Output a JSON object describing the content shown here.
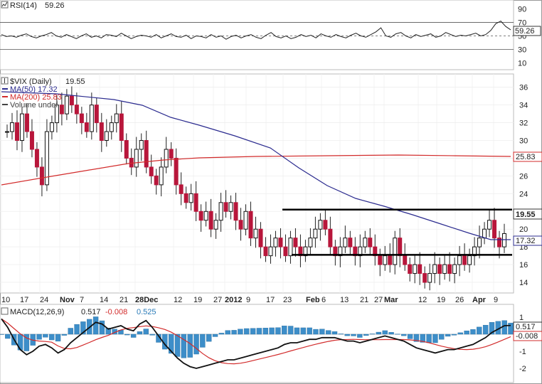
{
  "rsi": {
    "label": "RSI(14)",
    "value": "59.26",
    "ticks": [
      "90",
      "70",
      "50",
      "30",
      "10"
    ],
    "values": [
      52,
      49,
      50,
      48,
      51,
      53,
      49,
      47,
      50,
      52,
      55,
      50,
      48,
      52,
      49,
      46,
      50,
      53,
      48,
      50,
      47,
      52,
      51,
      49,
      54,
      50,
      46,
      49,
      51,
      50,
      48,
      52,
      47,
      50,
      53,
      49,
      48,
      51,
      46,
      50,
      49,
      47,
      52,
      48,
      50,
      45,
      49,
      51,
      47,
      50,
      52,
      48,
      46,
      51,
      55,
      49,
      47,
      50,
      46,
      48,
      52,
      49,
      51,
      47,
      53,
      50,
      48,
      52,
      49,
      47,
      51,
      54,
      50,
      48,
      52,
      56,
      62,
      50,
      48,
      53,
      55,
      50,
      47,
      52,
      49,
      51,
      53,
      48,
      50,
      55,
      52,
      49,
      51,
      50,
      52,
      54,
      50,
      52,
      58,
      68,
      72,
      64,
      59
    ]
  },
  "main": {
    "title": "$VIX (Daily)",
    "last": "19.55",
    "legend": [
      {
        "label": "MA(50) 17.32",
        "color": "#2b2b8f"
      },
      {
        "label": "MA(200) 25.83",
        "color": "#d22b2b"
      },
      {
        "label": "Volume undef",
        "color": "#444444"
      }
    ],
    "price_ticks": [
      "36",
      "34",
      "32",
      "30",
      "28",
      "26",
      "24",
      "22",
      "20",
      "18",
      "16",
      "14"
    ],
    "badges": {
      "last": "19.55",
      "ma200": "25.83",
      "ma50": "17.32"
    },
    "x_labels": [
      "10",
      "17",
      "24",
      "Nov",
      "7",
      "14",
      "21",
      "28Dec",
      "12",
      "19",
      "27",
      "2012",
      "9",
      "17",
      "23",
      "Feb",
      "6",
      "13",
      "21",
      "27",
      "Mar",
      "12",
      "19",
      "26",
      "Apr",
      "9"
    ]
  },
  "macd": {
    "label": "MACD(12,26,9)",
    "macd_value": "0.517",
    "signal_value": "-0.008",
    "hist_value": "0.525",
    "ticks": [
      "1",
      "0",
      "-1",
      "-2"
    ],
    "badges": {
      "macd": "0.517",
      "signal": "-0.008"
    }
  },
  "chart_data": [
    {
      "type": "line",
      "title": "RSI(14) 59.26",
      "ylim": [
        0,
        100
      ],
      "reference_lines": [
        70,
        50,
        30
      ]
    },
    {
      "type": "candlestick",
      "title": "$VIX (Daily) 19.55",
      "ylim": [
        12.8,
        37.5
      ],
      "x": [
        "Oct 10",
        "Oct 17",
        "Oct 24",
        "Nov 1",
        "Nov 7",
        "Nov 14",
        "Nov 21",
        "Nov 28",
        "Dec 12",
        "Dec 19",
        "Dec 27",
        "2012",
        "Jan 9",
        "Jan 17",
        "Jan 23",
        "Feb 1",
        "Feb 6",
        "Feb 13",
        "Feb 21",
        "Feb 27",
        "Mar 1",
        "Mar 12",
        "Mar 19",
        "Mar 26",
        "Apr 2",
        "Apr 9"
      ],
      "close": [
        32,
        31,
        29,
        31,
        34,
        33,
        32,
        31,
        27,
        25,
        21,
        23,
        22,
        21,
        17.5,
        17,
        18,
        20,
        18,
        17,
        19,
        16,
        15.5,
        15.5,
        17,
        19.55
      ],
      "series": [
        {
          "name": "MA(50)",
          "last": 17.32
        },
        {
          "name": "MA(200)",
          "last": 25.83
        }
      ],
      "horizontal_lines": [
        22.2,
        17.1
      ]
    },
    {
      "type": "bar",
      "title": "MACD(12,26,9) 0.517, -0.008, 0.525",
      "ylim": [
        -2.4,
        1.6
      ],
      "series": [
        {
          "name": "MACD",
          "last": 0.517
        },
        {
          "name": "Signal",
          "last": -0.008
        },
        {
          "name": "Histogram",
          "last": 0.525
        }
      ]
    }
  ]
}
